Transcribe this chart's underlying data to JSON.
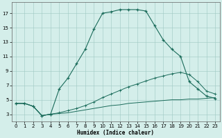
{
  "background_color": "#d4eeea",
  "line_color": "#1a6b5a",
  "xlabel": "Humidex (Indice chaleur)",
  "xlim": [
    -0.5,
    23.5
  ],
  "ylim": [
    2.0,
    18.5
  ],
  "yticks": [
    3,
    5,
    7,
    9,
    11,
    13,
    15,
    17
  ],
  "xticks": [
    0,
    1,
    2,
    3,
    4,
    5,
    6,
    7,
    8,
    9,
    10,
    11,
    12,
    13,
    14,
    15,
    16,
    17,
    18,
    19,
    20,
    21,
    22,
    23
  ],
  "curve1_x": [
    0,
    1,
    2,
    3,
    4,
    5,
    6,
    7,
    8,
    9,
    10,
    11,
    12,
    13,
    14,
    15,
    16,
    17,
    18,
    19,
    20,
    21,
    22,
    23
  ],
  "curve1_y": [
    4.5,
    4.5,
    4.1,
    2.8,
    3.0,
    6.5,
    8.0,
    10.0,
    12.0,
    14.8,
    17.0,
    17.2,
    17.5,
    17.5,
    17.5,
    17.3,
    15.3,
    13.3,
    12.0,
    11.0,
    7.5,
    6.5,
    5.5,
    5.2
  ],
  "curve2_x": [
    0,
    1,
    2,
    3,
    4,
    5,
    6,
    7,
    8,
    9,
    10,
    11,
    12,
    13,
    14,
    15,
    16,
    17,
    18,
    19,
    20,
    21,
    22,
    23
  ],
  "curve2_y": [
    4.5,
    4.5,
    4.1,
    2.8,
    3.0,
    3.2,
    3.5,
    3.8,
    4.2,
    4.7,
    5.3,
    5.8,
    6.3,
    6.8,
    7.2,
    7.6,
    8.0,
    8.3,
    8.6,
    8.8,
    8.5,
    7.5,
    6.2,
    5.8
  ],
  "curve3_x": [
    0,
    1,
    2,
    3,
    4,
    5,
    6,
    7,
    8,
    9,
    10,
    11,
    12,
    13,
    14,
    15,
    16,
    17,
    18,
    19,
    20,
    21,
    22,
    23
  ],
  "curve3_y": [
    4.5,
    4.5,
    4.1,
    2.8,
    3.0,
    3.1,
    3.2,
    3.4,
    3.6,
    3.8,
    4.0,
    4.2,
    4.3,
    4.5,
    4.6,
    4.7,
    4.8,
    4.9,
    5.0,
    5.0,
    5.1,
    5.1,
    5.2,
    5.3
  ]
}
